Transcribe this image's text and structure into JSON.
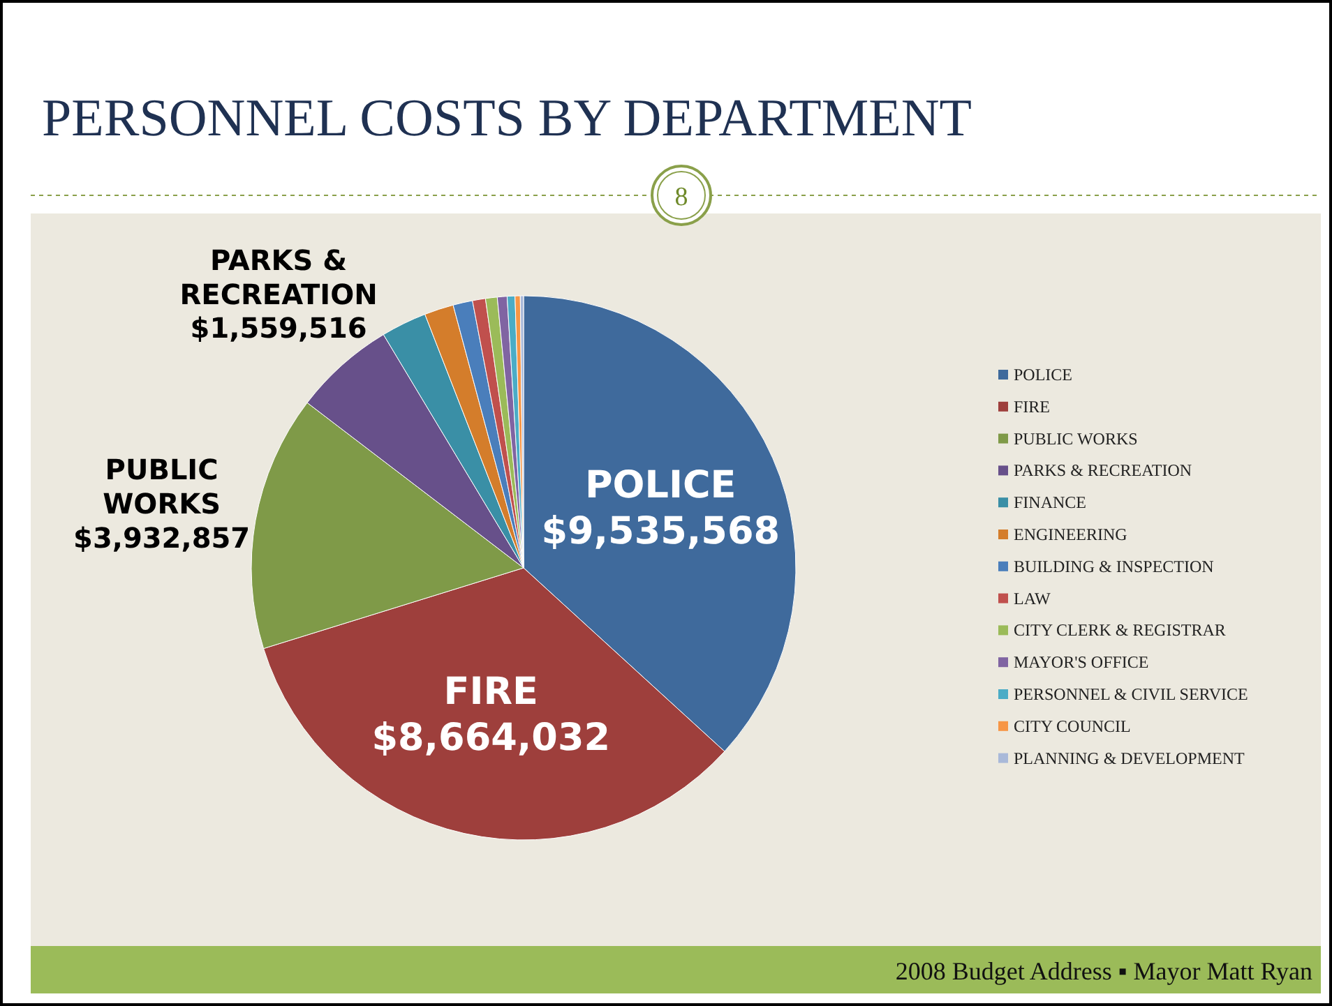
{
  "chart_data": {
    "type": "pie",
    "title": "PERSONNEL COSTS BY DEPARTMENT",
    "categories": [
      "POLICE",
      "FIRE",
      "PUBLIC WORKS",
      "PARKS & RECREATION",
      "FINANCE",
      "ENGINEERING",
      "BUILDING & INSPECTION",
      "LAW",
      "CITY CLERK & REGISTRAR",
      "MAYOR'S OFFICE",
      "PERSONNEL & CIVIL SERVICE",
      "CITY COUNCIL",
      "PLANNING & DEVELOPMENT"
    ],
    "values": [
      9535568,
      8664032,
      3932857,
      1559516,
      700000,
      450000,
      300000,
      200000,
      180000,
      150000,
      120000,
      80000,
      50000
    ],
    "value_labels": [
      "$9,535,568",
      "$8,664,032",
      "$3,932,857",
      "$1,559,516",
      null,
      null,
      null,
      null,
      null,
      null,
      null,
      null,
      null
    ],
    "colors": [
      "#3f6a9c",
      "#9e3f3c",
      "#7f9a48",
      "#67508a",
      "#3a8fa6",
      "#d47d2b",
      "#4a7ebb",
      "#c0504d",
      "#9bbb59",
      "#8064a2",
      "#4bacc6",
      "#f79646",
      "#a9b9d9"
    ],
    "legend": "right",
    "annotations": [
      "8",
      "2008 Budget Address ▪ Mayor Matt Ryan"
    ]
  }
}
